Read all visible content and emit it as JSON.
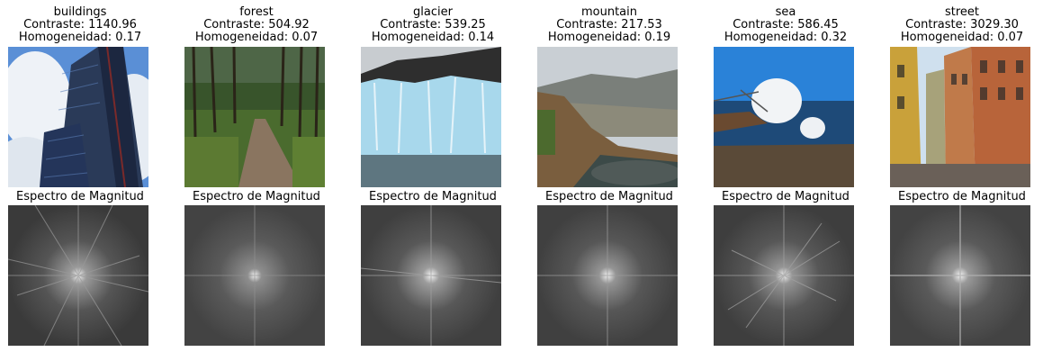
{
  "figure": {
    "spectrum_title": "Espectro de Magnitud",
    "panels": [
      {
        "label": "buildings",
        "contrast": "Contraste: 1140.96",
        "homogeneity": "Homogeneidad: 0.17",
        "colors": {
          "sky": "#5a8fd6",
          "main": "#2d3f5e"
        }
      },
      {
        "label": "forest",
        "contrast": "Contraste: 504.92",
        "homogeneity": "Homogeneidad: 0.07",
        "colors": {
          "sky": "#d9dfe6",
          "main": "#3f5a2a"
        }
      },
      {
        "label": "glacier",
        "contrast": "Contraste: 539.25",
        "homogeneity": "Homogeneidad: 0.14",
        "colors": {
          "sky": "#3b3b3b",
          "main": "#a9d8ec"
        }
      },
      {
        "label": "mountain",
        "contrast": "Contraste: 217.53",
        "homogeneity": "Homogeneidad: 0.19",
        "colors": {
          "sky": "#b9c0c6",
          "main": "#7a6a48"
        }
      },
      {
        "label": "sea",
        "contrast": "Contraste: 586.45",
        "homogeneity": "Homogeneidad: 0.32",
        "colors": {
          "sky": "#2a82d8",
          "main": "#5a4a38"
        }
      },
      {
        "label": "street",
        "contrast": "Contraste: 3029.30",
        "homogeneity": "Homogeneidad: 0.07",
        "colors": {
          "sky": "#cfe0ee",
          "main": "#b8643a"
        }
      }
    ]
  }
}
